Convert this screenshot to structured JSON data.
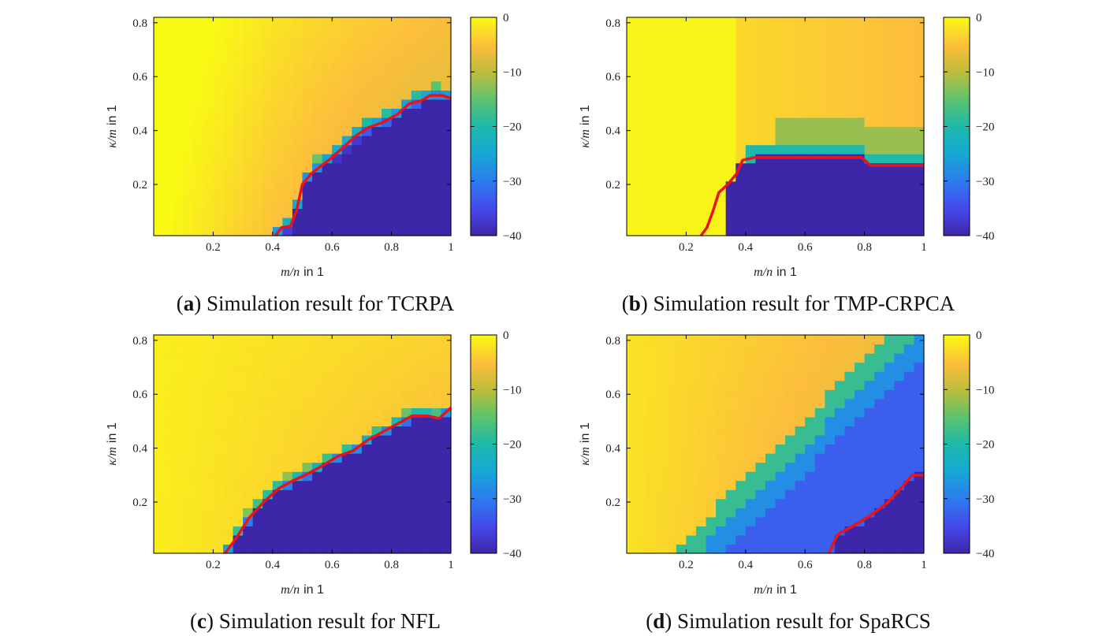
{
  "chart_data": [
    {
      "type": "heatmap",
      "panel_label": "a",
      "caption": "Simulation result for TCRPA",
      "xlabel_var": "m/n",
      "xlabel_unit": "in 1",
      "ylabel_var": "κ/m",
      "ylabel_unit": "in 1",
      "xlim": [
        0.0,
        1.0
      ],
      "ylim": [
        0.01,
        0.82
      ],
      "xticks": [
        "0.2",
        "0.4",
        "0.6",
        "0.8",
        "1"
      ],
      "yticks": [
        "0.2",
        "0.4",
        "0.6",
        "0.8"
      ],
      "colorbar": {
        "range": [
          -40,
          0
        ],
        "ticks": [
          "0",
          "−10",
          "−20",
          "−30",
          "−40"
        ],
        "colormap": "parula"
      },
      "boundary": [
        [
          0.41,
          0.01
        ],
        [
          0.43,
          0.04
        ],
        [
          0.46,
          0.045
        ],
        [
          0.48,
          0.1
        ],
        [
          0.5,
          0.2
        ],
        [
          0.53,
          0.24
        ],
        [
          0.6,
          0.3
        ],
        [
          0.68,
          0.38
        ],
        [
          0.72,
          0.41
        ],
        [
          0.77,
          0.43
        ],
        [
          0.82,
          0.46
        ],
        [
          0.86,
          0.5
        ],
        [
          0.9,
          0.51
        ],
        [
          0.93,
          0.53
        ],
        [
          0.97,
          0.53
        ],
        [
          1.0,
          0.52
        ]
      ],
      "boundary_color": "#e8141c"
    },
    {
      "type": "heatmap",
      "panel_label": "b",
      "caption": "Simulation result for TMP-CRPCA",
      "xlabel_var": "m/n",
      "xlabel_unit": "in 1",
      "ylabel_var": "κ/m",
      "ylabel_unit": "in 1",
      "xlim": [
        0.0,
        1.0
      ],
      "ylim": [
        0.01,
        0.82
      ],
      "xticks": [
        "0.2",
        "0.4",
        "0.6",
        "0.8",
        "1"
      ],
      "yticks": [
        "0.2",
        "0.4",
        "0.6",
        "0.8"
      ],
      "colorbar": {
        "range": [
          -40,
          0
        ],
        "ticks": [
          "0",
          "−10",
          "−20",
          "−30",
          "−40"
        ],
        "colormap": "parula"
      },
      "boundary": [
        [
          0.25,
          0.01
        ],
        [
          0.27,
          0.04
        ],
        [
          0.29,
          0.1
        ],
        [
          0.31,
          0.17
        ],
        [
          0.34,
          0.2
        ],
        [
          0.37,
          0.24
        ],
        [
          0.39,
          0.29
        ],
        [
          0.43,
          0.3
        ],
        [
          0.6,
          0.3
        ],
        [
          0.79,
          0.3
        ],
        [
          0.82,
          0.27
        ],
        [
          0.9,
          0.27
        ],
        [
          1.0,
          0.27
        ]
      ],
      "boundary_color": "#e8141c"
    },
    {
      "type": "heatmap",
      "panel_label": "c",
      "caption": "Simulation result for NFL",
      "xlabel_var": "m/n",
      "xlabel_unit": "in 1",
      "ylabel_var": "κ/m",
      "ylabel_unit": "in 1",
      "xlim": [
        0.0,
        1.0
      ],
      "ylim": [
        0.01,
        0.82
      ],
      "xticks": [
        "0.2",
        "0.4",
        "0.6",
        "0.8",
        "1"
      ],
      "yticks": [
        "0.2",
        "0.4",
        "0.6",
        "0.8"
      ],
      "colorbar": {
        "range": [
          -40,
          0
        ],
        "ticks": [
          "0",
          "−10",
          "−20",
          "−30",
          "−40"
        ],
        "colormap": "parula"
      },
      "boundary": [
        [
          0.24,
          0.01
        ],
        [
          0.28,
          0.07
        ],
        [
          0.32,
          0.14
        ],
        [
          0.37,
          0.2
        ],
        [
          0.42,
          0.25
        ],
        [
          0.47,
          0.28
        ],
        [
          0.51,
          0.3
        ],
        [
          0.56,
          0.33
        ],
        [
          0.62,
          0.37
        ],
        [
          0.67,
          0.39
        ],
        [
          0.72,
          0.43
        ],
        [
          0.77,
          0.46
        ],
        [
          0.82,
          0.49
        ],
        [
          0.87,
          0.52
        ],
        [
          0.92,
          0.52
        ],
        [
          0.96,
          0.51
        ],
        [
          1.0,
          0.55
        ]
      ],
      "boundary_color": "#e8141c"
    },
    {
      "type": "heatmap",
      "panel_label": "d",
      "caption": "Simulation result for SpaRCS",
      "xlabel_var": "m/n",
      "xlabel_unit": "in 1",
      "ylabel_var": "κ/m",
      "ylabel_unit": "in 1",
      "xlim": [
        0.0,
        1.0
      ],
      "ylim": [
        0.01,
        0.82
      ],
      "xticks": [
        "0.2",
        "0.4",
        "0.6",
        "0.8",
        "1"
      ],
      "yticks": [
        "0.2",
        "0.4",
        "0.6",
        "0.8"
      ],
      "colorbar": {
        "range": [
          -40,
          0
        ],
        "ticks": [
          "0",
          "−10",
          "−20",
          "−30",
          "−40"
        ],
        "colormap": "parula"
      },
      "boundary": [
        [
          0.68,
          0.01
        ],
        [
          0.71,
          0.08
        ],
        [
          0.76,
          0.11
        ],
        [
          0.82,
          0.15
        ],
        [
          0.88,
          0.2
        ],
        [
          0.93,
          0.26
        ],
        [
          0.96,
          0.3
        ],
        [
          1.0,
          0.3
        ]
      ],
      "boundary_color": "#e8141c"
    }
  ]
}
